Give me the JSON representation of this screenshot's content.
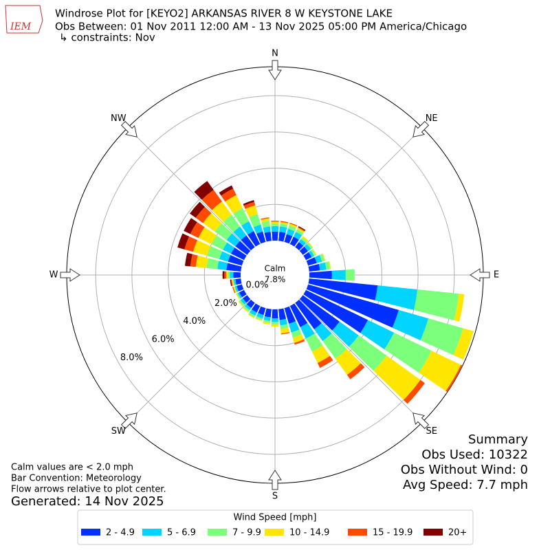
{
  "chart_data": {
    "type": "windrose",
    "title": "Windrose Plot for [KEYO2] ARKANSAS RIVER 8 W KEYSTONE LAKE",
    "subtitle": "Obs Between: 01 Nov 2011 12:00 AM - 13 Nov 2025 05:00 PM America/Chicago",
    "constraint": "↳ constraints: Nov",
    "logo_text": "IEM",
    "compass_labels": [
      "N",
      "NE",
      "E",
      "SE",
      "S",
      "SW",
      "W",
      "NW"
    ],
    "calm_label": "Calm",
    "calm_value_label": "7.8%",
    "x": [
      0,
      10,
      20,
      30,
      40,
      50,
      60,
      70,
      80,
      90,
      100,
      110,
      120,
      130,
      140,
      150,
      160,
      170,
      180,
      190,
      200,
      210,
      220,
      230,
      240,
      250,
      260,
      270,
      280,
      290,
      300,
      310,
      320,
      330,
      340,
      350
    ],
    "rlim": [
      0,
      9.6
    ],
    "rticks": [
      {
        "value": 0,
        "label": "0.0%"
      },
      {
        "value": 2,
        "label": "2.0%"
      },
      {
        "value": 4,
        "label": "4.0%"
      },
      {
        "value": 6,
        "label": "6.0%"
      },
      {
        "value": 8,
        "label": "8.0%"
      }
    ],
    "grid": true,
    "legend_title": "Wind Speed [mph]",
    "series": [
      {
        "name": "2 - 4.9",
        "color": "#0030ff",
        "values": [
          0.5,
          0.5,
          0.45,
          0.45,
          0.35,
          0.35,
          0.35,
          0.5,
          0.6,
          1.25,
          3.8,
          5.2,
          3.8,
          2.5,
          1.8,
          1.3,
          0.9,
          0.6,
          0.5,
          0.45,
          0.4,
          0.4,
          0.35,
          0.3,
          0.3,
          0.3,
          0.3,
          0.4,
          0.8,
          0.8,
          0.8,
          0.8,
          0.8,
          0.8,
          0.6,
          0.5
        ]
      },
      {
        "name": "5 - 6.9",
        "color": "#00d4ff",
        "values": [
          0.3,
          0.3,
          0.3,
          0.3,
          0.2,
          0.2,
          0.15,
          0.3,
          0.35,
          0.75,
          2.2,
          1.7,
          1.6,
          1.3,
          0.8,
          0.7,
          0.5,
          0.3,
          0.2,
          0.2,
          0.2,
          0.2,
          0.15,
          0.15,
          0.1,
          0.1,
          0.1,
          0.2,
          0.5,
          0.5,
          0.5,
          0.6,
          0.6,
          0.6,
          0.4,
          0.3
        ]
      },
      {
        "name": "7 - 9.9",
        "color": "#7cff7a",
        "values": [
          0.15,
          0.15,
          0.2,
          0.15,
          0.1,
          0.1,
          0.1,
          0.15,
          0.2,
          0.5,
          2.3,
          2.0,
          2.3,
          1.9,
          1.2,
          0.8,
          0.3,
          0.2,
          0.15,
          0.1,
          0.1,
          0.1,
          0.1,
          0.1,
          0.05,
          0.05,
          0.05,
          0.1,
          0.6,
          0.7,
          0.7,
          0.8,
          0.8,
          0.8,
          0.6,
          0.3
        ]
      },
      {
        "name": "10 - 14.9",
        "color": "#ffe600",
        "values": [
          0.1,
          0.1,
          0.1,
          0.1,
          0.1,
          0.05,
          0.05,
          0.05,
          0.05,
          0,
          0.3,
          0.6,
          1.8,
          2.3,
          1.1,
          0.7,
          0.3,
          0.25,
          0.1,
          0.1,
          0.05,
          0.05,
          0.05,
          0.05,
          0.05,
          0.05,
          0.05,
          0.1,
          0.6,
          0.8,
          0.8,
          0.8,
          0.9,
          0.8,
          0.5,
          0.15
        ]
      },
      {
        "name": "15 - 19.9",
        "color": "#ff4a00",
        "values": [
          0.05,
          0.05,
          0.05,
          0.05,
          0,
          0,
          0,
          0,
          0,
          0,
          0,
          0,
          0.1,
          0.3,
          0.3,
          0.3,
          0.1,
          0.05,
          0,
          0,
          0,
          0,
          0,
          0,
          0,
          0.05,
          0.05,
          0.1,
          0.3,
          0.5,
          0.5,
          0.5,
          0.8,
          0.4,
          0.2,
          0.05
        ]
      },
      {
        "name": "20+",
        "color": "#800000",
        "values": [
          0,
          0,
          0,
          0.05,
          0,
          0,
          0,
          0,
          0,
          0,
          0,
          0,
          0,
          0,
          0,
          0,
          0,
          0,
          0,
          0,
          0,
          0,
          0,
          0,
          0,
          0,
          0.05,
          0.1,
          0.3,
          0.4,
          0.4,
          0.4,
          0.6,
          0.2,
          0.1,
          0
        ]
      }
    ],
    "notes": [
      "Calm values are < 2.0 mph",
      "Bar Convention: Meteorology",
      "Flow arrows relative to plot center."
    ],
    "generated": "Generated: 14 Nov 2025",
    "summary": [
      "Summary",
      "Obs Used: 10322",
      "Obs Without Wind: 0",
      "Avg Speed: 7.7 mph"
    ]
  }
}
